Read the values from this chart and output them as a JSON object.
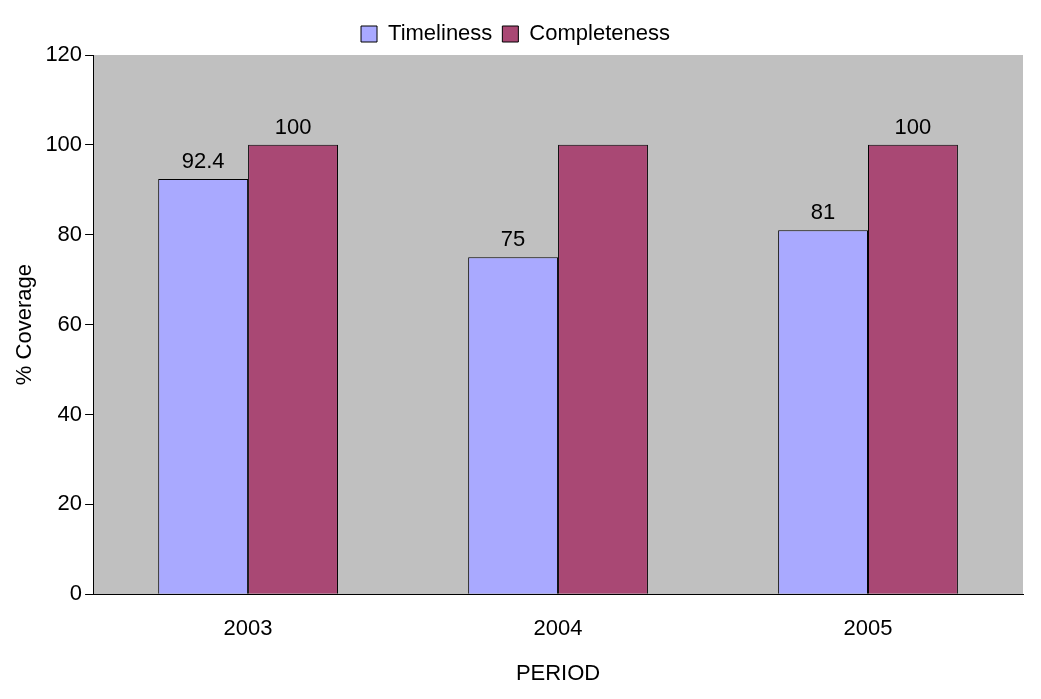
{
  "chart_data": {
    "type": "bar",
    "xlabel": "PERIOD",
    "ylabel": "% Coverage",
    "categories": [
      "2003",
      "2004",
      "2005"
    ],
    "series": [
      {
        "name": "Timeliness",
        "color": "#a9a9ff",
        "values": [
          92.4,
          75,
          81
        ],
        "value_labels": [
          "92.4",
          "75",
          "81"
        ]
      },
      {
        "name": "Completeness",
        "color": "#a94874",
        "values": [
          100,
          100,
          100
        ],
        "value_labels": [
          "100",
          null,
          "100"
        ]
      }
    ],
    "ylim": [
      0,
      120
    ],
    "yticks": [
      0,
      20,
      40,
      60,
      80,
      100,
      120
    ],
    "grid": false,
    "legend": "top"
  }
}
